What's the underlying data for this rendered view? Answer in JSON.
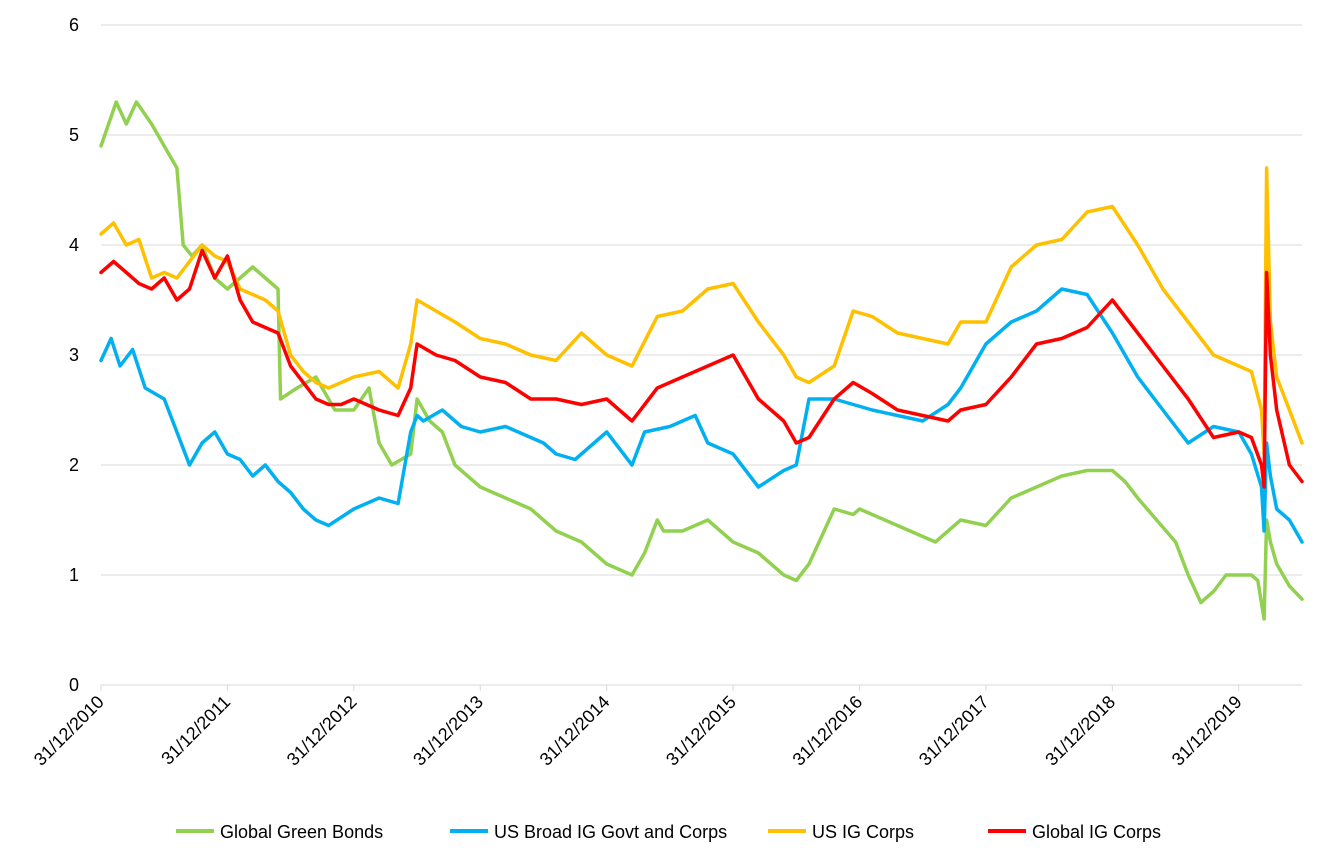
{
  "chart_data": {
    "type": "line",
    "title": "",
    "xlabel": "",
    "ylabel": "",
    "ylim": [
      0,
      6
    ],
    "y_ticks": [
      "0",
      "1",
      "2",
      "3",
      "4",
      "5",
      "6"
    ],
    "x_tick_labels": [
      "31/12/2010",
      "31/12/2011",
      "31/12/2012",
      "31/12/2013",
      "31/12/2014",
      "31/12/2015",
      "31/12/2016",
      "31/12/2017",
      "31/12/2018",
      "31/12/2019"
    ],
    "grid": "horizontal",
    "legend_position": "bottom",
    "series": [
      {
        "name": "Global Green Bonds",
        "color": "#92D050",
        "x": [
          2011.0,
          2011.12,
          2011.2,
          2011.28,
          2011.4,
          2011.5,
          2011.6,
          2011.65,
          2011.72,
          2011.8,
          2011.9,
          2012.0,
          2012.2,
          2012.4,
          2012.42,
          2012.55,
          2012.7,
          2012.85,
          2013.0,
          2013.12,
          2013.2,
          2013.3,
          2013.45,
          2013.5,
          2013.6,
          2013.7,
          2013.8,
          2013.9,
          2014.0,
          2014.2,
          2014.4,
          2014.6,
          2014.8,
          2015.0,
          2015.2,
          2015.3,
          2015.4,
          2015.45,
          2015.6,
          2015.8,
          2016.0,
          2016.2,
          2016.4,
          2016.5,
          2016.6,
          2016.8,
          2016.95,
          2017.0,
          2017.2,
          2017.4,
          2017.6,
          2017.8,
          2018.0,
          2018.2,
          2018.4,
          2018.6,
          2018.8,
          2019.0,
          2019.1,
          2019.2,
          2019.35,
          2019.5,
          2019.6,
          2019.7,
          2019.8,
          2019.9,
          2020.0,
          2020.1,
          2020.15,
          2020.2,
          2020.22,
          2020.25,
          2020.3,
          2020.4,
          2020.5
        ],
        "y": [
          4.9,
          5.3,
          5.1,
          5.3,
          5.1,
          4.9,
          4.7,
          4.0,
          3.9,
          4.0,
          3.7,
          3.6,
          3.8,
          3.6,
          2.6,
          2.7,
          2.8,
          2.5,
          2.5,
          2.7,
          2.2,
          2.0,
          2.1,
          2.6,
          2.4,
          2.3,
          2.0,
          1.9,
          1.8,
          1.7,
          1.6,
          1.4,
          1.3,
          1.1,
          1.0,
          1.2,
          1.5,
          1.4,
          1.4,
          1.5,
          1.3,
          1.2,
          1.0,
          0.95,
          1.1,
          1.6,
          1.55,
          1.6,
          1.5,
          1.4,
          1.3,
          1.5,
          1.45,
          1.7,
          1.8,
          1.9,
          1.95,
          1.95,
          1.85,
          1.7,
          1.5,
          1.3,
          1.0,
          0.75,
          0.85,
          1.0,
          1.0,
          1.0,
          0.95,
          0.6,
          1.5,
          1.3,
          1.1,
          0.9,
          0.78
        ]
      },
      {
        "name": "US Broad IG Govt and Corps",
        "color": "#00B0F0",
        "x": [
          2011.0,
          2011.08,
          2011.15,
          2011.25,
          2011.35,
          2011.5,
          2011.6,
          2011.7,
          2011.8,
          2011.9,
          2012.0,
          2012.1,
          2012.2,
          2012.3,
          2012.4,
          2012.5,
          2012.6,
          2012.7,
          2012.8,
          2013.0,
          2013.2,
          2013.35,
          2013.45,
          2013.5,
          2013.55,
          2013.7,
          2013.85,
          2014.0,
          2014.2,
          2014.4,
          2014.5,
          2014.6,
          2014.75,
          2015.0,
          2015.2,
          2015.3,
          2015.5,
          2015.7,
          2015.8,
          2016.0,
          2016.2,
          2016.4,
          2016.5,
          2016.6,
          2016.8,
          2016.95,
          2017.1,
          2017.3,
          2017.5,
          2017.7,
          2017.8,
          2018.0,
          2018.2,
          2018.4,
          2018.6,
          2018.8,
          2019.0,
          2019.2,
          2019.4,
          2019.6,
          2019.8,
          2020.0,
          2020.1,
          2020.18,
          2020.2,
          2020.22,
          2020.25,
          2020.3,
          2020.4,
          2020.5
        ],
        "y": [
          2.95,
          3.15,
          2.9,
          3.05,
          2.7,
          2.6,
          2.3,
          2.0,
          2.2,
          2.3,
          2.1,
          2.05,
          1.9,
          2.0,
          1.85,
          1.75,
          1.6,
          1.5,
          1.45,
          1.6,
          1.7,
          1.65,
          2.3,
          2.45,
          2.4,
          2.5,
          2.35,
          2.3,
          2.35,
          2.25,
          2.2,
          2.1,
          2.05,
          2.3,
          2.0,
          2.3,
          2.35,
          2.45,
          2.2,
          2.1,
          1.8,
          1.95,
          2.0,
          2.6,
          2.6,
          2.55,
          2.5,
          2.45,
          2.4,
          2.55,
          2.7,
          3.1,
          3.3,
          3.4,
          3.6,
          3.55,
          3.2,
          2.8,
          2.5,
          2.2,
          2.35,
          2.3,
          2.1,
          1.8,
          1.4,
          2.2,
          1.9,
          1.6,
          1.5,
          1.3
        ]
      },
      {
        "name": "US IG Corps",
        "color": "#FFC000",
        "x": [
          2011.0,
          2011.1,
          2011.2,
          2011.3,
          2011.4,
          2011.5,
          2011.6,
          2011.7,
          2011.8,
          2011.9,
          2012.0,
          2012.1,
          2012.2,
          2012.3,
          2012.4,
          2012.5,
          2012.6,
          2012.7,
          2012.8,
          2012.9,
          2013.0,
          2013.2,
          2013.35,
          2013.45,
          2013.5,
          2013.65,
          2013.8,
          2014.0,
          2014.2,
          2014.4,
          2014.6,
          2014.8,
          2015.0,
          2015.2,
          2015.4,
          2015.6,
          2015.8,
          2016.0,
          2016.2,
          2016.4,
          2016.5,
          2016.6,
          2016.8,
          2016.95,
          2017.1,
          2017.3,
          2017.5,
          2017.7,
          2017.8,
          2018.0,
          2018.2,
          2018.4,
          2018.6,
          2018.8,
          2019.0,
          2019.2,
          2019.4,
          2019.6,
          2019.8,
          2020.0,
          2020.1,
          2020.18,
          2020.2,
          2020.22,
          2020.25,
          2020.3,
          2020.4,
          2020.5
        ],
        "y": [
          4.1,
          4.2,
          4.0,
          4.05,
          3.7,
          3.75,
          3.7,
          3.85,
          4.0,
          3.9,
          3.85,
          3.6,
          3.55,
          3.5,
          3.4,
          3.0,
          2.85,
          2.75,
          2.7,
          2.75,
          2.8,
          2.85,
          2.7,
          3.1,
          3.5,
          3.4,
          3.3,
          3.15,
          3.1,
          3.0,
          2.95,
          3.2,
          3.0,
          2.9,
          3.35,
          3.4,
          3.6,
          3.65,
          3.3,
          3.0,
          2.8,
          2.75,
          2.9,
          3.4,
          3.35,
          3.2,
          3.15,
          3.1,
          3.3,
          3.3,
          3.8,
          4.0,
          4.05,
          4.3,
          4.35,
          4.0,
          3.6,
          3.3,
          3.0,
          2.9,
          2.85,
          2.5,
          2.1,
          4.7,
          3.3,
          2.8,
          2.5,
          2.2
        ]
      },
      {
        "name": "Global IG Corps",
        "color": "#FF0000",
        "x": [
          2011.0,
          2011.1,
          2011.2,
          2011.3,
          2011.4,
          2011.5,
          2011.6,
          2011.7,
          2011.8,
          2011.9,
          2012.0,
          2012.1,
          2012.2,
          2012.3,
          2012.4,
          2012.5,
          2012.6,
          2012.7,
          2012.8,
          2012.9,
          2013.0,
          2013.2,
          2013.35,
          2013.45,
          2013.5,
          2013.65,
          2013.8,
          2014.0,
          2014.2,
          2014.4,
          2014.6,
          2014.8,
          2015.0,
          2015.2,
          2015.4,
          2015.6,
          2015.8,
          2016.0,
          2016.2,
          2016.4,
          2016.5,
          2016.6,
          2016.8,
          2016.95,
          2017.1,
          2017.3,
          2017.5,
          2017.7,
          2017.8,
          2018.0,
          2018.2,
          2018.4,
          2018.6,
          2018.8,
          2019.0,
          2019.2,
          2019.4,
          2019.6,
          2019.8,
          2020.0,
          2020.1,
          2020.18,
          2020.2,
          2020.22,
          2020.25,
          2020.3,
          2020.4,
          2020.5
        ],
        "y": [
          3.75,
          3.85,
          3.75,
          3.65,
          3.6,
          3.7,
          3.5,
          3.6,
          3.95,
          3.7,
          3.9,
          3.5,
          3.3,
          3.25,
          3.2,
          2.9,
          2.75,
          2.6,
          2.55,
          2.55,
          2.6,
          2.5,
          2.45,
          2.7,
          3.1,
          3.0,
          2.95,
          2.8,
          2.75,
          2.6,
          2.6,
          2.55,
          2.6,
          2.4,
          2.7,
          2.8,
          2.9,
          3.0,
          2.6,
          2.4,
          2.2,
          2.25,
          2.6,
          2.75,
          2.65,
          2.5,
          2.45,
          2.4,
          2.5,
          2.55,
          2.8,
          3.1,
          3.15,
          3.25,
          3.5,
          3.2,
          2.9,
          2.6,
          2.25,
          2.3,
          2.25,
          2.0,
          1.8,
          3.75,
          3.0,
          2.5,
          2.0,
          1.85
        ]
      }
    ]
  }
}
